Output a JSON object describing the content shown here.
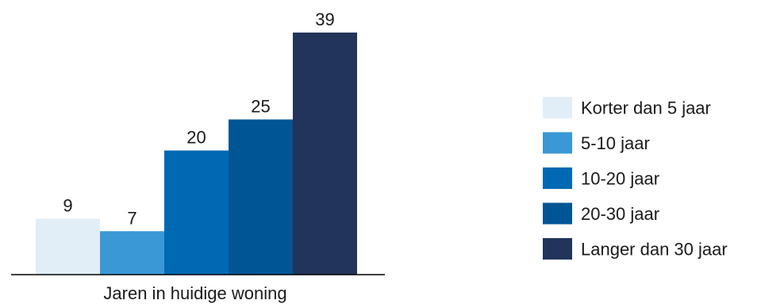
{
  "chart_data": {
    "type": "bar",
    "xlabel": "Jaren in huidige woning",
    "ylabel": "",
    "ylim": [
      0,
      39
    ],
    "grid": false,
    "legend_position": "right",
    "series": [
      {
        "name": "Korter dan 5 jaar",
        "value": 9,
        "color": "#e1eef8"
      },
      {
        "name": "5-10 jaar",
        "value": 7,
        "color": "#3a98d6"
      },
      {
        "name": "10-20 jaar",
        "value": 20,
        "color": "#0069b4"
      },
      {
        "name": "20-30 jaar",
        "value": 25,
        "color": "#005595"
      },
      {
        "name": "Langer dan 30 jaar",
        "value": 39,
        "color": "#22345a"
      }
    ]
  }
}
